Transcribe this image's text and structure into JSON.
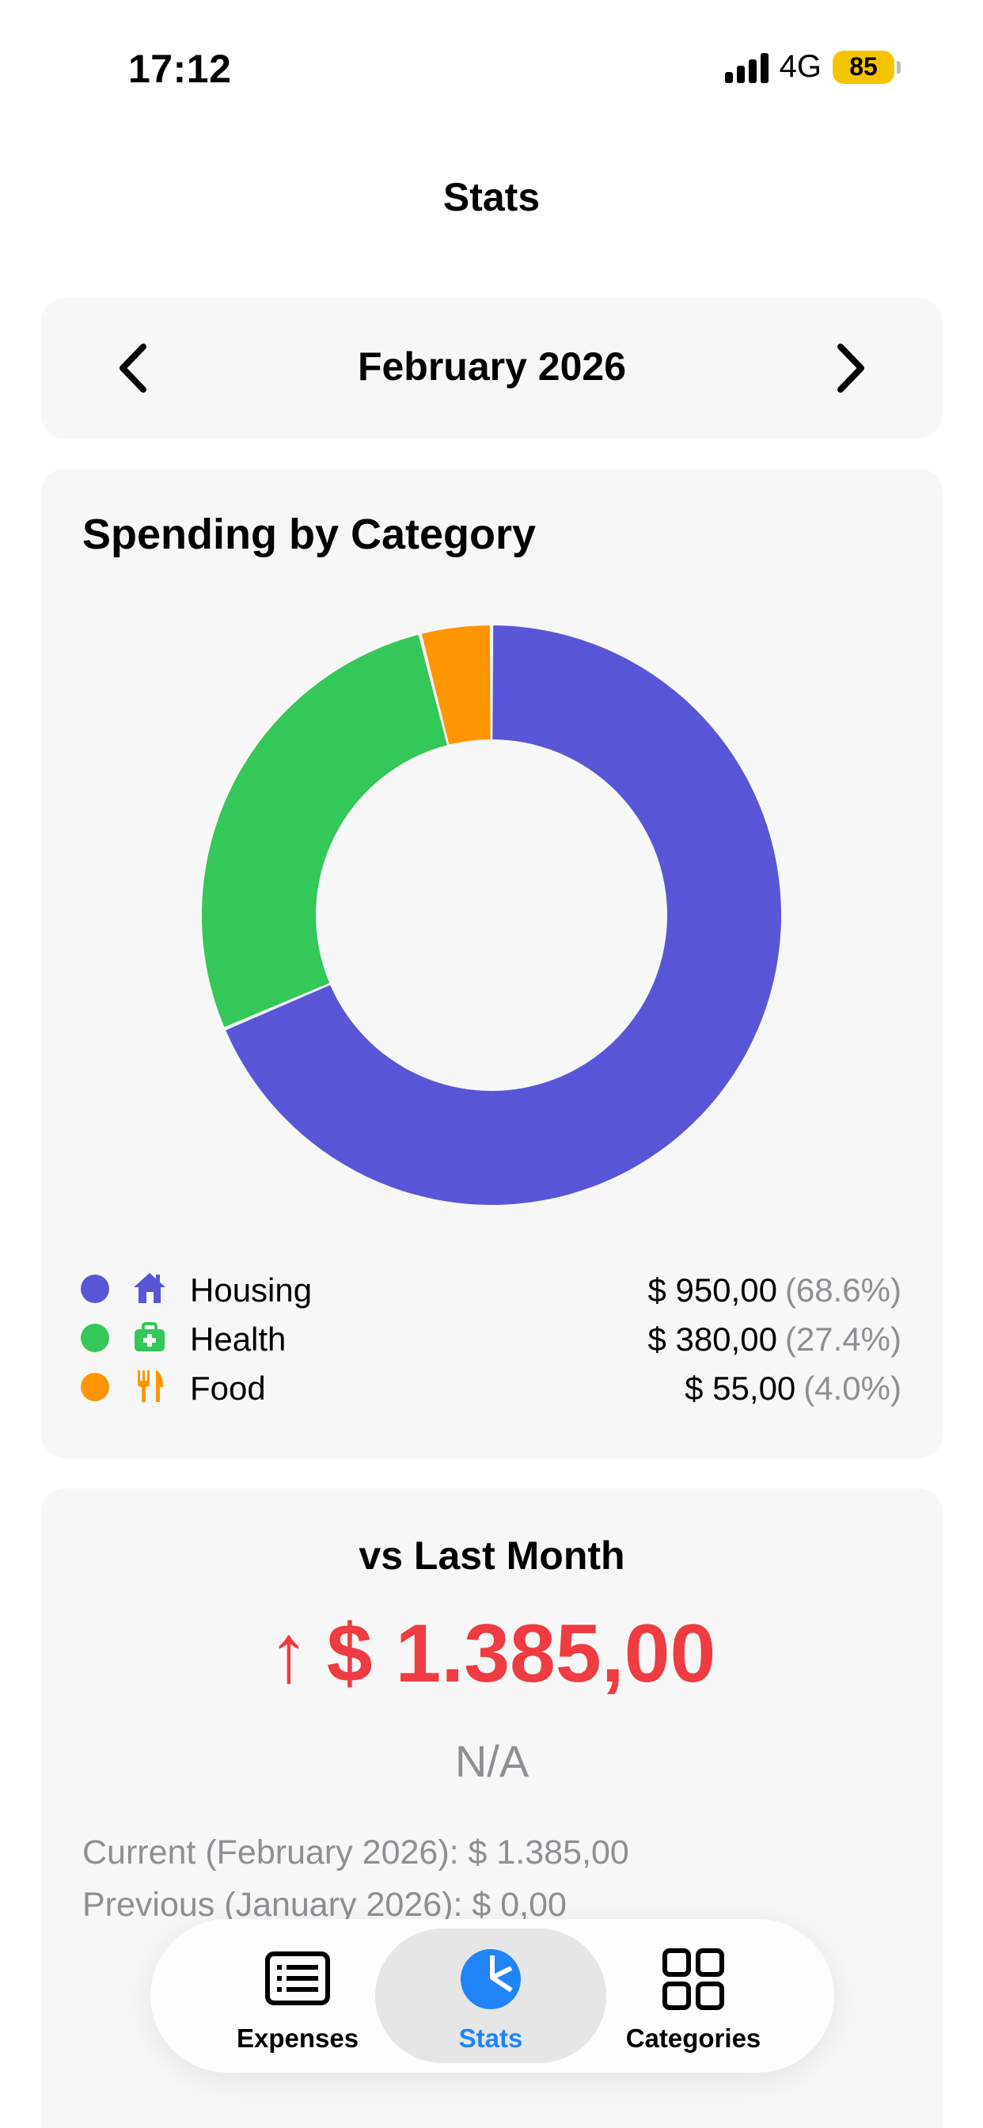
{
  "status_bar": {
    "time": "17:12",
    "network": "4G",
    "battery": "85"
  },
  "header": {
    "title": "Stats"
  },
  "month_selector": {
    "label": "February 2026"
  },
  "chart_card": {
    "title": "Spending by Category",
    "legend": [
      {
        "label": "Housing",
        "amount": "$ 950,00",
        "percent": "(68.6%)",
        "color": "#5856d6",
        "icon": "house-icon"
      },
      {
        "label": "Health",
        "amount": "$ 380,00",
        "percent": "(27.4%)",
        "color": "#34c759",
        "icon": "medical-kit-icon"
      },
      {
        "label": "Food",
        "amount": "$ 55,00",
        "percent": "(4.0%)",
        "color": "#ff9500",
        "icon": "fork-knife-icon"
      }
    ]
  },
  "chart_data": {
    "type": "pie",
    "donut": true,
    "categories": [
      "Housing",
      "Health",
      "Food"
    ],
    "values": [
      950,
      380,
      55
    ],
    "percentages": [
      68.6,
      27.4,
      4.0
    ],
    "colors": [
      "#5856d6",
      "#34c759",
      "#ff9500"
    ],
    "title": "Spending by Category"
  },
  "comparison": {
    "title": "vs Last Month",
    "arrow": "↑",
    "amount": "$ 1.385,00",
    "percent": "N/A",
    "current_line": "Current (February 2026): $ 1.385,00",
    "previous_line": "Previous (January 2026): $ 0,00",
    "accent_color": "#ef3b42"
  },
  "tab_bar": {
    "tabs": [
      {
        "label": "Expenses",
        "icon": "list-icon"
      },
      {
        "label": "Stats",
        "icon": "pie-chart-icon",
        "selected": true
      },
      {
        "label": "Categories",
        "icon": "grid-icon"
      }
    ],
    "accent_color": "#1f84f5"
  }
}
